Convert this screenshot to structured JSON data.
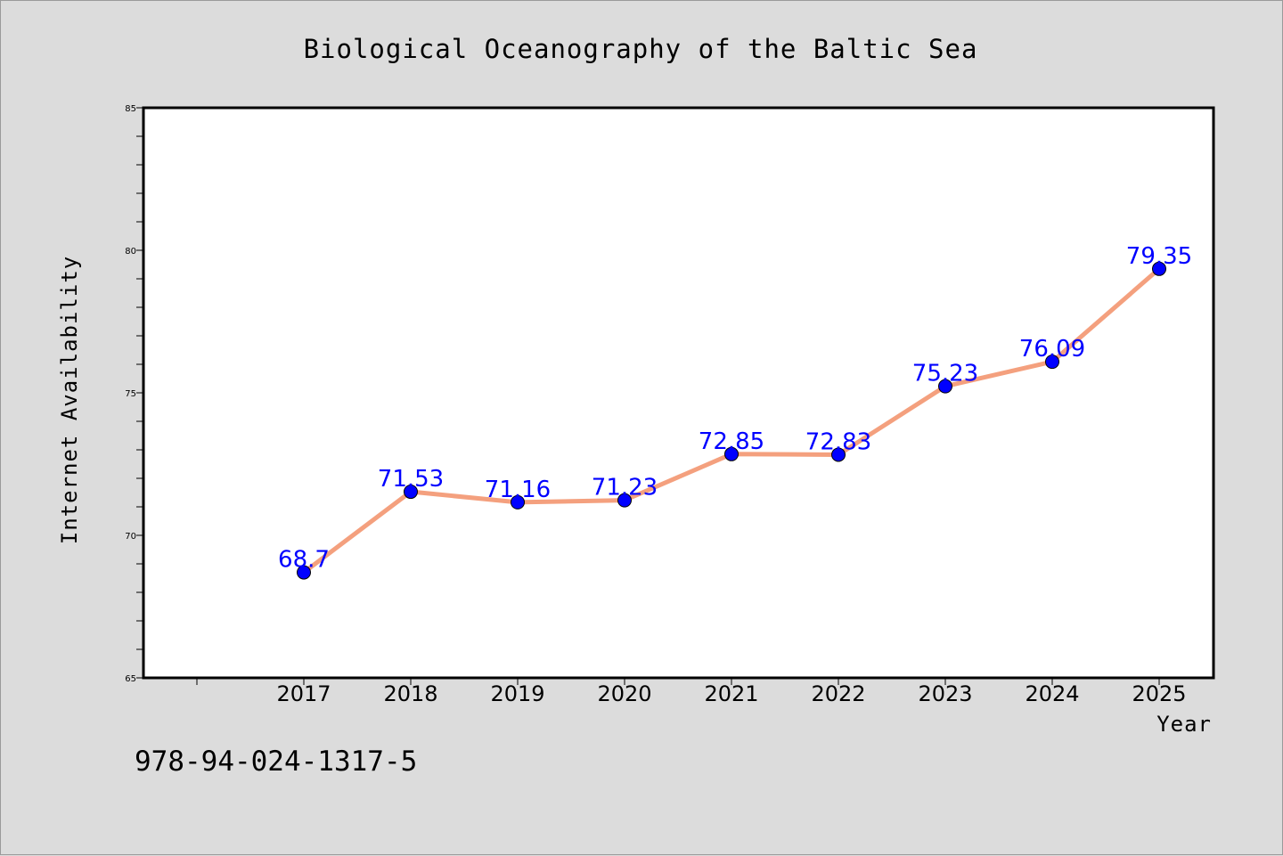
{
  "chart_data": {
    "type": "line",
    "title": "Biological Oceanography of the Baltic Sea",
    "xlabel": "Year",
    "ylabel": "Internet Availability",
    "categories": [
      "2017",
      "2018",
      "2019",
      "2020",
      "2021",
      "2022",
      "2023",
      "2024",
      "2025"
    ],
    "series": [
      {
        "values": [
          68.7,
          71.53,
          71.16,
          71.23,
          72.85,
          72.83,
          75.23,
          76.09,
          79.35
        ],
        "labels": [
          "68.7",
          "71.53",
          "71.16",
          "71.23",
          "72.85",
          "72.83",
          "75.23",
          "76.09",
          "79.35"
        ]
      }
    ],
    "ylim": [
      65,
      85
    ],
    "y_ticks": [
      "65",
      "70",
      "75",
      "80",
      "85"
    ],
    "grid": false,
    "line_color": "#f4a07e",
    "marker_color": "#0000ff",
    "label_color": "#0000ff"
  },
  "footer": {
    "isbn": "978-94-024-1317-5"
  },
  "colors": {
    "background": "#dcdcdc",
    "plot_background": "#ffffff"
  }
}
